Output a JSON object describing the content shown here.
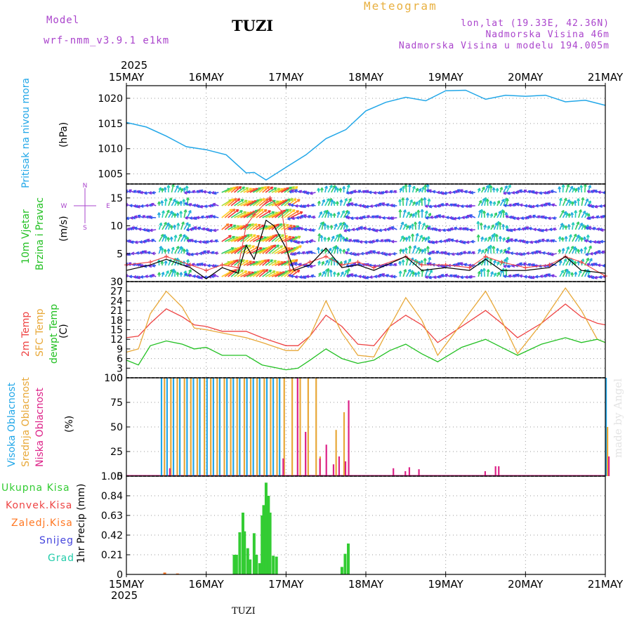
{
  "header": {
    "model_label": "Model",
    "model_name": "wrf-nmm_v3.9.1  e1km",
    "station": "TUZI",
    "product": "Meteogram",
    "coords": "lon,lat (19.33E, 42.36N)",
    "elevation": "Nadmorska Visina 46m",
    "model_elevation": "Nadmorska Visina u modelu 194.005m",
    "year": "2025",
    "footer_station": "TUZI",
    "watermark": "made by Angel"
  },
  "colors": {
    "pressure": "#22a7e8",
    "temp2m": "#ee4444",
    "sfc": "#e8a838",
    "dew": "#22c022",
    "high_cloud": "#22a7e8",
    "mid_cloud": "#e8a838",
    "low_cloud": "#dd2288",
    "rain": "#33cc33",
    "convective": "#ee4444",
    "freezing": "#ff7722",
    "snow": "#4444dd",
    "hail": "#22ccaa",
    "wind_speed": "#000000",
    "gusts": "#ee4444",
    "label_purple": "#aa44cc",
    "label_gold": "#e8b040"
  },
  "chart_data": [
    {
      "panel": "pressure",
      "type": "line",
      "ylabel": "(hPa)",
      "side_labels": [
        "Pritisak na nivou mora"
      ],
      "x_ticks": [
        "15MAY",
        "16MAY",
        "17MAY",
        "18MAY",
        "19MAY",
        "20MAY",
        "21MAY"
      ],
      "yticks": [
        1005,
        1010,
        1015,
        1020
      ],
      "ylim": [
        1003,
        1022.5
      ],
      "series": [
        {
          "x": [
            0,
            0.25,
            0.5,
            0.75,
            1.0,
            1.25,
            1.5,
            1.6,
            1.75,
            2.0,
            2.25,
            2.5,
            2.75,
            3.0,
            3.25,
            3.5,
            3.75,
            4.0,
            4.25,
            4.5,
            4.75,
            5.0,
            5.25,
            5.5,
            5.75,
            6.0
          ],
          "values": [
            1015.2,
            1014.3,
            1012.5,
            1010.4,
            1009.8,
            1008.8,
            1005.2,
            1005.3,
            1003.8,
            1006.3,
            1008.8,
            1012.0,
            1013.8,
            1017.5,
            1019.2,
            1020.2,
            1019.5,
            1021.5,
            1021.6,
            1019.8,
            1020.6,
            1020.4,
            1020.6,
            1019.3,
            1019.6,
            1018.6
          ]
        }
      ]
    },
    {
      "panel": "wind",
      "type": "line",
      "ylabel": "(m/s)",
      "side_labels": [
        "10m Vjetar",
        "Brzina i Pravac"
      ],
      "compass": {
        "n": "N",
        "s": "S",
        "e": "E",
        "w": "W"
      },
      "yticks": [
        0,
        5,
        10,
        15
      ],
      "ylim": [
        0,
        17.5
      ],
      "series": [
        {
          "x": [
            0,
            0.3,
            0.5,
            0.8,
            1.0,
            1.2,
            1.4,
            1.5,
            1.6,
            1.75,
            1.85,
            2.0,
            2.1,
            2.3,
            2.5,
            2.7,
            2.9,
            3.1,
            3.5,
            3.7,
            4.0,
            4.3,
            4.5,
            4.7,
            5.0,
            5.3,
            5.5,
            5.7,
            6.0
          ],
          "values": [
            2.0,
            3.0,
            4.0,
            2.5,
            0.5,
            2.5,
            1.5,
            6.5,
            4.0,
            11.0,
            10.0,
            6.0,
            2.0,
            3.0,
            6.0,
            2.5,
            3.0,
            2.0,
            4.5,
            2.0,
            2.5,
            2.0,
            4.0,
            2.0,
            2.0,
            2.5,
            4.5,
            2.0,
            1.5
          ]
        },
        {
          "x": [
            0,
            0.3,
            0.5,
            0.8,
            1.0,
            1.2,
            1.4,
            1.5,
            1.6,
            1.8,
            1.95,
            2.05,
            2.3,
            2.5,
            2.7,
            2.9,
            3.1,
            3.5,
            3.7,
            4.0,
            4.3,
            4.5,
            4.7,
            5.0,
            5.3,
            5.5,
            5.7,
            6.0
          ],
          "values": [
            3.0,
            3.5,
            4.5,
            3.0,
            2.0,
            3.0,
            2.5,
            10.0,
            12.0,
            15.0,
            12.5,
            2.0,
            3.5,
            4.5,
            3.0,
            3.5,
            2.5,
            4.5,
            3.0,
            3.0,
            2.5,
            4.5,
            3.5,
            2.5,
            3.0,
            4.5,
            3.5,
            1.0
          ]
        }
      ]
    },
    {
      "panel": "temperature",
      "type": "line",
      "ylabel": "(C)",
      "side_labels": [
        "2m Temp",
        "SFC Temp",
        "dewpt Temp"
      ],
      "yticks": [
        0,
        3,
        6,
        9,
        12,
        15,
        18,
        21,
        24,
        27,
        30
      ],
      "ylim": [
        0,
        30
      ],
      "series": [
        {
          "name": "2m Temp",
          "x": [
            0,
            0.15,
            0.3,
            0.5,
            0.7,
            0.85,
            1.0,
            1.2,
            1.5,
            1.7,
            2.0,
            2.15,
            2.3,
            2.5,
            2.7,
            2.9,
            3.1,
            3.3,
            3.5,
            3.7,
            3.9,
            4.2,
            4.5,
            4.7,
            4.9,
            5.2,
            5.5,
            5.7,
            5.9,
            6.0
          ],
          "values": [
            12.5,
            13.0,
            17.0,
            21.5,
            19.0,
            16.5,
            16.0,
            14.5,
            14.5,
            12.5,
            10.0,
            10.0,
            13.0,
            19.5,
            16.0,
            10.5,
            10.0,
            16.0,
            19.5,
            16.5,
            11.0,
            16.0,
            21.0,
            17.0,
            12.5,
            17.0,
            23.0,
            19.0,
            17.0,
            16.5
          ]
        },
        {
          "name": "SFC Temp",
          "x": [
            0,
            0.15,
            0.3,
            0.5,
            0.7,
            0.85,
            1.0,
            1.2,
            1.5,
            1.7,
            2.0,
            2.15,
            2.3,
            2.5,
            2.7,
            2.9,
            3.1,
            3.3,
            3.5,
            3.7,
            3.9,
            4.2,
            4.5,
            4.7,
            4.9,
            5.2,
            5.5,
            5.7,
            5.9,
            6.0
          ],
          "values": [
            8.0,
            9.0,
            20.0,
            27.0,
            22.0,
            15.5,
            15.0,
            14.0,
            12.5,
            11.0,
            8.5,
            8.5,
            13.0,
            24.0,
            14.0,
            7.0,
            6.5,
            16.0,
            25.0,
            18.0,
            7.0,
            17.0,
            27.0,
            18.0,
            7.5,
            17.0,
            28.0,
            21.0,
            12.0,
            11.0
          ]
        },
        {
          "name": "dewpt Temp",
          "x": [
            0,
            0.15,
            0.3,
            0.5,
            0.7,
            0.85,
            1.0,
            1.2,
            1.5,
            1.7,
            2.0,
            2.15,
            2.3,
            2.5,
            2.7,
            2.9,
            3.1,
            3.3,
            3.5,
            3.7,
            3.9,
            4.2,
            4.5,
            4.7,
            4.9,
            5.2,
            5.5,
            5.7,
            5.9,
            6.0
          ],
          "values": [
            5.5,
            4.0,
            10.0,
            11.5,
            10.5,
            9.0,
            9.5,
            7.0,
            7.0,
            4.0,
            2.5,
            3.0,
            5.5,
            9.0,
            6.0,
            4.5,
            5.5,
            8.5,
            10.5,
            7.5,
            5.0,
            9.5,
            12.0,
            9.5,
            7.0,
            10.5,
            12.5,
            11.0,
            12.0,
            11.0
          ]
        }
      ]
    },
    {
      "panel": "cloud",
      "type": "bar",
      "ylabel": "(%)",
      "side_labels": [
        "Visoka Oblacnost",
        "Srednja Oblacnost",
        "Niska Oblacnost"
      ],
      "yticks": [
        0,
        25,
        50,
        75,
        100
      ],
      "ylim": [
        0,
        100
      ],
      "series": [
        {
          "name": "Visoka Oblacnost",
          "x": [
            0.43,
            0.5,
            0.58,
            0.66,
            0.75,
            0.83,
            0.91,
            1.0,
            1.08,
            1.16,
            1.25,
            1.33,
            1.41,
            1.5,
            1.58,
            1.66,
            1.75,
            1.83,
            1.91,
            6.0
          ],
          "values": [
            100,
            100,
            100,
            100,
            100,
            100,
            100,
            100,
            100,
            100,
            100,
            100,
            100,
            100,
            100,
            100,
            100,
            100,
            100,
            100
          ]
        },
        {
          "name": "Srednja Oblacnost",
          "x": [
            0.45,
            0.53,
            0.61,
            0.7,
            0.78,
            0.86,
            0.95,
            1.03,
            1.11,
            1.2,
            1.28,
            1.36,
            1.45,
            1.53,
            1.61,
            1.7,
            1.78,
            1.86,
            1.95,
            2.05,
            2.15,
            2.25,
            2.35,
            2.4,
            2.6,
            2.7,
            6.0
          ],
          "values": [
            100,
            100,
            100,
            100,
            100,
            100,
            100,
            100,
            100,
            100,
            100,
            100,
            100,
            100,
            100,
            100,
            100,
            100,
            100,
            100,
            100,
            100,
            100,
            20,
            47,
            65,
            50
          ]
        },
        {
          "name": "Niska Oblacnost",
          "x": [
            0.5,
            1.92,
            2.1,
            2.2,
            2.38,
            2.46,
            2.55,
            2.62,
            2.7,
            2.74,
            3.3,
            3.45,
            3.5,
            3.62,
            4.45,
            4.58,
            4.62,
            6.0
          ],
          "values": [
            8,
            18,
            100,
            45,
            18,
            32,
            12,
            20,
            15,
            77,
            8,
            5,
            9,
            7,
            5,
            10,
            10,
            20
          ]
        }
      ]
    },
    {
      "panel": "precip",
      "type": "bar",
      "ylabel": "1hr Precip (mm)",
      "side_labels": [
        "Ukupna Kisa",
        "Konvek.Kisa",
        "Zaledj.Kisa",
        "Snijeg",
        "Grad"
      ],
      "x_ticks": [
        "15MAY",
        "16MAY",
        "17MAY",
        "18MAY",
        "19MAY",
        "20MAY",
        "21MAY"
      ],
      "yticks": [
        0,
        0.21,
        0.42,
        0.63,
        0.84,
        1.05
      ],
      "ylim": [
        0,
        1.05
      ],
      "series": [
        {
          "name": "Ukupna Kisa",
          "x": [
            1.35,
            1.38,
            1.42,
            1.46,
            1.48,
            1.52,
            1.55,
            1.6,
            1.63,
            1.67,
            1.7,
            1.72,
            1.75,
            1.78,
            1.8,
            1.84,
            1.88,
            2.7,
            2.74,
            2.78
          ],
          "values": [
            0.21,
            0.21,
            0.45,
            0.66,
            0.46,
            0.28,
            0.16,
            0.44,
            0.21,
            0.12,
            0.63,
            0.74,
            0.98,
            0.84,
            0.66,
            0.2,
            0.19,
            0.08,
            0.22,
            0.33
          ]
        },
        {
          "name": "Zaledj.Kisa",
          "x": [
            0.48,
            0.64
          ],
          "values": [
            0.02,
            0.01
          ]
        }
      ]
    }
  ]
}
